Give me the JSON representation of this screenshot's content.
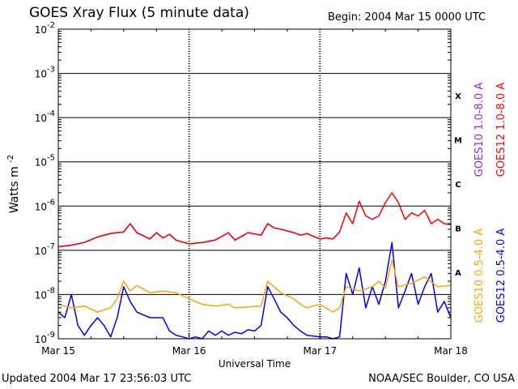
{
  "header": {
    "title": "GOES Xray Flux (5 minute data)",
    "begin": "Begin:  2004 Mar 15 0000 UTC"
  },
  "footer": {
    "updated": "Updated 2004 Mar 17 23:56:03 UTC",
    "credit": "NOAA/SEC Boulder, CO USA"
  },
  "chart_data": {
    "type": "line",
    "title": "GOES Xray Flux (5 minute data)",
    "xlabel": "Universal Time",
    "ylabel": "Watts m-2",
    "y_scale": "log",
    "ylim": [
      1e-09,
      0.01
    ],
    "x_range_days": [
      0,
      3
    ],
    "x_tick_labels": [
      "Mar 15",
      "Mar 16",
      "Mar 17",
      "Mar 18"
    ],
    "y_tick_exponents": [
      -2,
      -3,
      -4,
      -5,
      -6,
      -7,
      -8,
      -9
    ],
    "flare_classes": [
      "X",
      "M",
      "C",
      "B",
      "A"
    ],
    "grid": true,
    "legend_position": "right",
    "series": [
      {
        "name": "GOES10 1.0-8.0 A",
        "color": "#8a2be2",
        "x_days": [
          0.0,
          0.1,
          0.2,
          0.3,
          0.4,
          0.5,
          0.55,
          0.6,
          0.7,
          0.75,
          0.8,
          0.85,
          0.9,
          1.0,
          1.1,
          1.2,
          1.3,
          1.35,
          1.45,
          1.55,
          1.6,
          1.65,
          1.7,
          1.8,
          1.85,
          1.9,
          2.0,
          2.05,
          2.1,
          2.15
        ],
        "values": [
          1.2e-07,
          1.3e-07,
          1.5e-07,
          2e-07,
          2.4e-07,
          2.6e-07,
          4e-07,
          2.5e-07,
          1.8e-07,
          2.5e-07,
          1.9e-07,
          2.3e-07,
          1.7e-07,
          1.4e-07,
          1.5e-07,
          1.7e-07,
          2.5e-07,
          1.7e-07,
          2.5e-07,
          2.2e-07,
          4e-07,
          3.2e-07,
          3e-07,
          2.5e-07,
          2.2e-07,
          2.4e-07,
          1.8e-07,
          1.9e-07,
          1.8e-07,
          2.6e-07
        ]
      },
      {
        "name": "GOES12 1.0-8.0 A",
        "color": "#ff0000",
        "x_days": [
          0.0,
          0.1,
          0.2,
          0.3,
          0.4,
          0.5,
          0.55,
          0.6,
          0.7,
          0.75,
          0.8,
          0.85,
          0.9,
          1.0,
          1.1,
          1.2,
          1.3,
          1.35,
          1.45,
          1.55,
          1.6,
          1.65,
          1.7,
          1.8,
          1.85,
          1.9,
          2.0,
          2.05,
          2.1,
          2.15,
          2.2,
          2.25,
          2.3,
          2.35,
          2.4,
          2.45,
          2.5,
          2.55,
          2.6,
          2.65,
          2.7,
          2.75,
          2.8,
          2.85,
          2.9,
          2.95,
          3.0
        ],
        "values": [
          1.2e-07,
          1.3e-07,
          1.5e-07,
          2e-07,
          2.4e-07,
          2.6e-07,
          4e-07,
          2.5e-07,
          1.8e-07,
          2.5e-07,
          1.9e-07,
          2.3e-07,
          1.7e-07,
          1.4e-07,
          1.5e-07,
          1.7e-07,
          2.5e-07,
          1.7e-07,
          2.5e-07,
          2.2e-07,
          4e-07,
          3.2e-07,
          3e-07,
          2.5e-07,
          2.2e-07,
          2.4e-07,
          1.8e-07,
          1.9e-07,
          1.8e-07,
          2.6e-07,
          7e-07,
          4e-07,
          1.3e-06,
          6e-07,
          5e-07,
          6e-07,
          1.2e-06,
          2e-06,
          1.2e-06,
          5e-07,
          7e-07,
          6e-07,
          8e-07,
          4e-07,
          5e-07,
          4e-07,
          3.8e-07
        ]
      },
      {
        "name": "GOES10 0.5-4.0 A",
        "color": "#ffa500",
        "x_days": [
          0.0,
          0.1,
          0.2,
          0.3,
          0.4,
          0.45,
          0.5,
          0.55,
          0.6,
          0.7,
          0.8,
          0.9,
          1.0,
          1.1,
          1.2,
          1.3,
          1.35,
          1.55,
          1.6,
          1.7,
          1.8,
          1.85,
          1.9,
          2.0,
          2.1,
          2.15,
          2.2,
          2.3,
          2.4,
          2.45,
          2.5,
          2.55,
          2.6,
          2.7,
          2.8,
          2.9,
          3.0
        ],
        "values": [
          6e-09,
          5e-09,
          5.5e-09,
          4e-09,
          5e-09,
          8e-09,
          2e-08,
          1.2e-08,
          1.6e-08,
          1.1e-08,
          1.2e-08,
          1.1e-08,
          8e-09,
          6e-09,
          5.5e-09,
          6e-09,
          5e-09,
          5.5e-09,
          2e-08,
          1.1e-08,
          8e-09,
          6e-09,
          5e-09,
          6e-09,
          4e-09,
          5e-09,
          1.5e-08,
          1.2e-08,
          1.5e-08,
          2e-08,
          1.4e-08,
          6e-08,
          1.5e-08,
          1.8e-08,
          2.5e-08,
          1.5e-08,
          1.6e-08
        ]
      },
      {
        "name": "GOES12 0.5-4.0 A",
        "color": "#0000ff",
        "x_days": [
          0.0,
          0.05,
          0.1,
          0.15,
          0.2,
          0.25,
          0.3,
          0.35,
          0.4,
          0.45,
          0.5,
          0.55,
          0.6,
          0.7,
          0.8,
          0.85,
          0.9,
          0.95,
          1.0,
          1.05,
          1.1,
          1.15,
          1.2,
          1.25,
          1.3,
          1.35,
          1.4,
          1.45,
          1.5,
          1.55,
          1.6,
          1.65,
          1.7,
          1.75,
          1.8,
          1.85,
          1.9,
          2.0,
          2.05,
          2.1,
          2.15,
          2.2,
          2.25,
          2.3,
          2.35,
          2.4,
          2.45,
          2.5,
          2.55,
          2.6,
          2.65,
          2.7,
          2.75,
          2.8,
          2.85,
          2.9,
          2.95,
          3.0
        ],
        "values": [
          4e-09,
          3e-09,
          1e-08,
          2e-09,
          1.2e-09,
          2e-09,
          3e-09,
          2e-09,
          1.1e-09,
          3e-09,
          1.5e-08,
          7e-09,
          4e-09,
          3e-09,
          3e-09,
          1.5e-09,
          1.2e-09,
          1.1e-09,
          1e-09,
          1.1e-09,
          1e-09,
          1.5e-09,
          1.2e-09,
          1.5e-09,
          1.2e-09,
          1.4e-09,
          1.3e-09,
          1.6e-09,
          1.5e-09,
          2e-09,
          1.5e-08,
          8e-09,
          4e-09,
          3e-09,
          2e-09,
          1.5e-09,
          1.2e-09,
          1.1e-09,
          1.1e-09,
          1e-09,
          1.1e-09,
          3e-08,
          1e-08,
          4e-08,
          5e-09,
          1.5e-08,
          6e-09,
          2e-08,
          1.5e-07,
          5e-09,
          1.2e-08,
          3e-08,
          6e-09,
          1.5e-08,
          3e-08,
          4e-09,
          7e-09,
          3e-09
        ]
      }
    ]
  }
}
